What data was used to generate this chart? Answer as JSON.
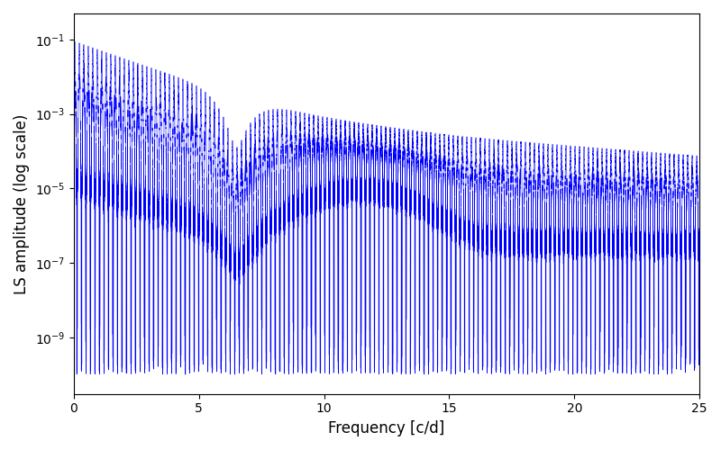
{
  "xlabel": "Frequency [c/d]",
  "ylabel": "LS amplitude (log scale)",
  "line_color": "#0000ff",
  "xlim": [
    0,
    25
  ],
  "ylim": [
    3e-11,
    0.5
  ],
  "freq_max": 25.0,
  "n_points": 200000,
  "seed": 42,
  "figsize": [
    8.0,
    5.0
  ],
  "dpi": 100,
  "background_color": "#ffffff"
}
